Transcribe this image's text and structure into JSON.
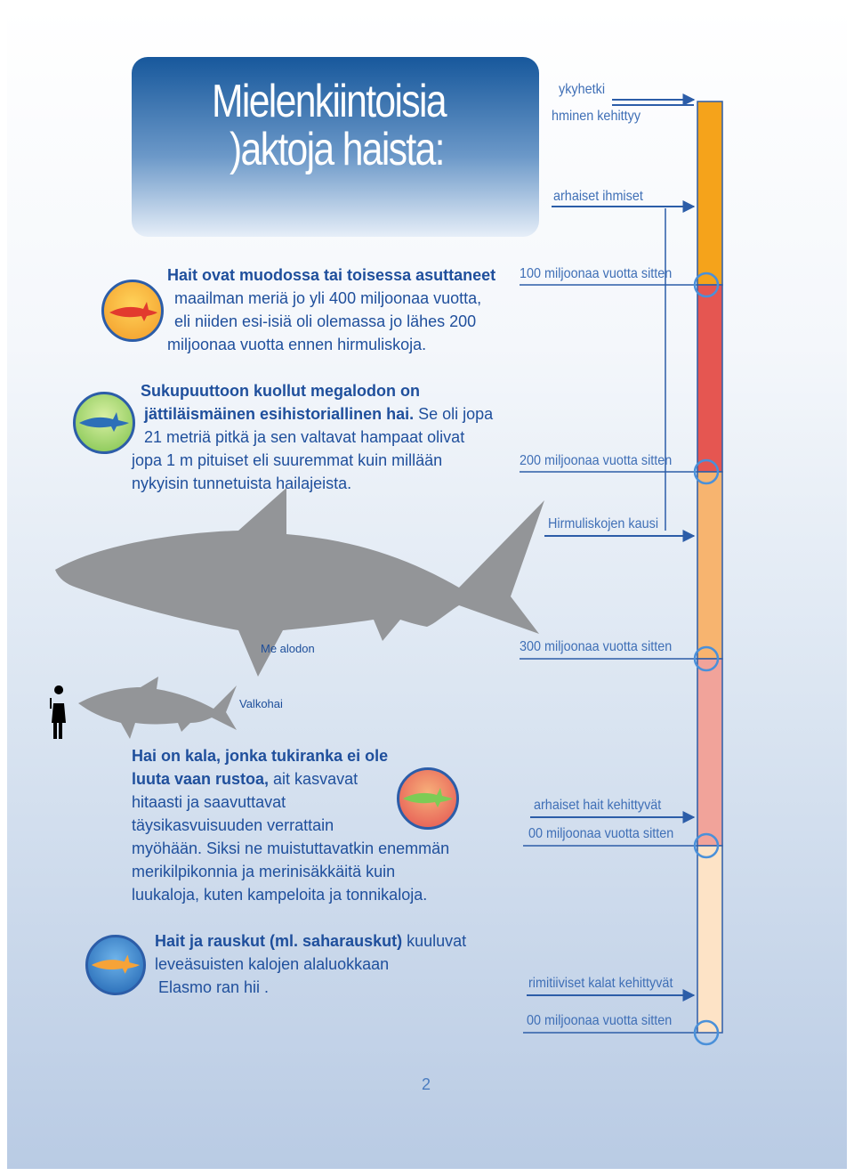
{
  "title": {
    "line1": "Mielenkiintoisia",
    "line2": ")aktoja haista:"
  },
  "timeline": {
    "labels": {
      "nykyhetki": "ykyhetki",
      "ihminen": "hminen kehittyy",
      "arhaiset_ihmiset": "arhaiset ihmiset",
      "m100": "100 miljoonaa vuotta sitten",
      "m200": "200 miljoonaa vuotta sitten",
      "hirmuliskot": "Hirmuliskojen kausi",
      "m300": "300 miljoonaa vuotta sitten",
      "hait": "arhaiset hait kehittyvät",
      "m400": "00 miljoonaa vuotta sitten",
      "kalat": "rimitiiviset kalat kehittyvät",
      "m500": "00 miljoonaa vuotta sitten"
    },
    "colors": [
      "#f5a31b",
      "#e55651",
      "#f7b46f",
      "#f1a39a",
      "#fde3c6"
    ]
  },
  "facts": {
    "fact1": {
      "l1": "Hait ovat muodossa tai toisessa asuttaneet",
      "l2": "maailman meriä jo yli 400 miljoonaa vuotta,",
      "l3": "eli niiden esi-isiä oli olemassa jo lähes 200",
      "l4": "miljoonaa vuotta ennen hirmuliskoja."
    },
    "fact2": {
      "l1": "Sukupuuttoon kuollut megalodon on",
      "l2": "jättiläismäinen esihistoriallinen hai.",
      "l2b": " Se oli jopa",
      "l3": "21 metriä pitkä ja sen valtavat hampaat olivat",
      "l4": "jopa 1     m pituiset eli suuremmat kuin millään",
      "l5": "nykyisin tunnetuista hailajeista."
    },
    "fact3": {
      "l1": "Hai on kala, jonka tukiranka ei ole",
      "l2a": "luuta vaan rustoa,",
      "l2b": "  ait kasvavat",
      "l3": "hitaasti ja saavuttavat",
      "l4": "täysikasvuisuuden verrattain",
      "l5": "myöhään. Siksi ne muistuttavatkin enemmän",
      "l6": "merikilpikonnia ja merinisäkkäitä kuin",
      "l7": "luukaloja, kuten kampeloita ja tonnikaloja."
    },
    "fact4": {
      "l1a": "Hait ja rauskut (ml. saharauskut)",
      "l1b": " kuuluvat",
      "l2": "leveäsuisten kalojen alaluokkaan",
      "l3": "Elasmo   ran hii  ."
    }
  },
  "sharks": {
    "megalodon": "Me  alodon",
    "valkohai": "Valkohai"
  },
  "page_number": "2"
}
